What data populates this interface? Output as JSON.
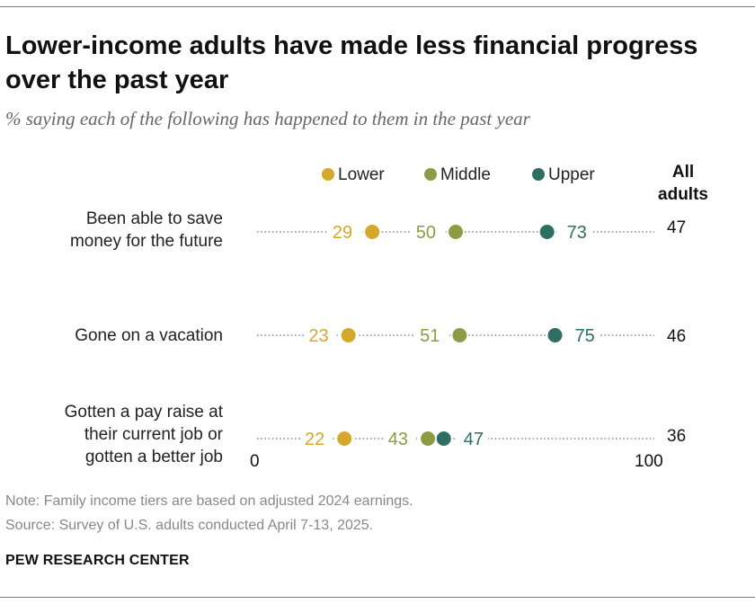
{
  "title": "Lower-income adults have made less financial progress over the past year",
  "subtitle": "% saying each of the following has happened to them in the past year",
  "legend": [
    {
      "label": "Lower",
      "color": "#d4a82a"
    },
    {
      "label": "Middle",
      "color": "#8f9a44"
    },
    {
      "label": "Upper",
      "color": "#2f6e62"
    }
  ],
  "all_adults_header": [
    "All",
    "adults"
  ],
  "chart_data": {
    "type": "dot",
    "series": [
      {
        "name": "Lower",
        "color": "#d4a82a",
        "values": [
          29,
          23,
          22
        ]
      },
      {
        "name": "Middle",
        "color": "#8f9a44",
        "values": [
          50,
          51,
          43
        ]
      },
      {
        "name": "Upper",
        "color": "#2f6e62",
        "values": [
          73,
          75,
          47
        ]
      }
    ],
    "categories": [
      [
        "Been able to save",
        "money for the future"
      ],
      [
        "Gone on a vacation"
      ],
      [
        "Gotten a pay raise at",
        "their current job or",
        "gotten a better job"
      ]
    ],
    "all_adults": [
      47,
      46,
      36
    ],
    "xlim": [
      0,
      100
    ],
    "axis_labels": [
      "0",
      "100"
    ]
  },
  "note": "Note: Family income tiers are based on adjusted 2024 earnings.",
  "source": "Source: Survey of U.S. adults conducted April 7-13, 2025.",
  "brand": "PEW RESEARCH CENTER"
}
